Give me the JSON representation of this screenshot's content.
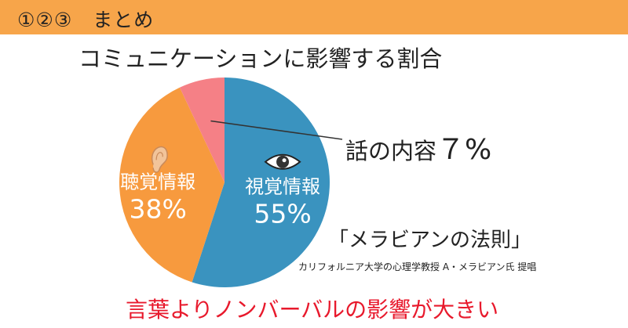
{
  "header": {
    "title": "①②③　まとめ",
    "bg_color": "#f7a54a"
  },
  "chart_data": {
    "type": "pie",
    "title": "コミュニケーションに影響する割合",
    "slices": [
      {
        "label": "視覚情報",
        "value": 55,
        "value_label": "55%",
        "color": "#3a93bf",
        "icon": "eye-icon"
      },
      {
        "label": "聴覚情報",
        "value": 38,
        "value_label": "38%",
        "color": "#f79a3e",
        "icon": "ear-icon"
      },
      {
        "label": "話の内容",
        "value": 7,
        "value_label": "7%",
        "color": "#f58086"
      }
    ],
    "callout": {
      "text": "話の内容",
      "value_label": "７%"
    }
  },
  "law": "「メラビアンの法則」",
  "credit": "カリフォルニア大学の心理学教授 A・メラビアン氏 提唱",
  "bottom_text": "言葉よりノンバーバルの影響が大きい",
  "accent_color": "#e8192c"
}
